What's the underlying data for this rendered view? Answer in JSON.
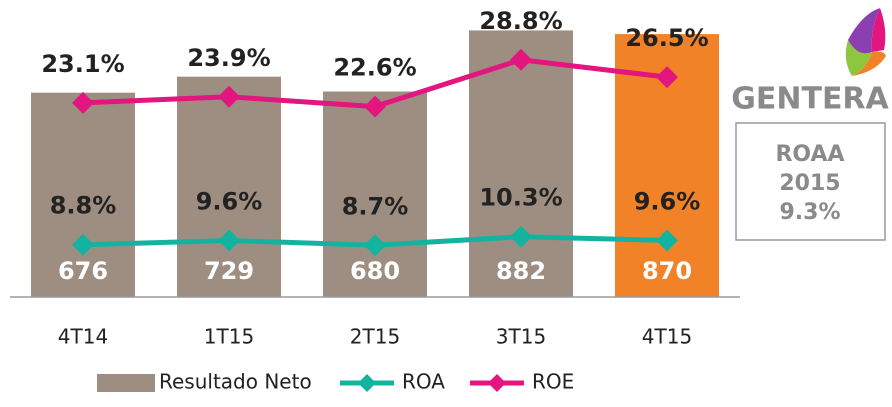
{
  "chart_data": {
    "type": "bar",
    "categories": [
      "4T14",
      "1T15",
      "2T15",
      "3T15",
      "4T15"
    ],
    "ylim": [
      0,
      900
    ],
    "y2lim": [
      -2.6,
      33.4
    ],
    "y3lim": [
      -1,
      50
    ],
    "series": [
      {
        "name": "Resultado Neto",
        "type": "bar",
        "colors": [
          "#9e8e81",
          "#9e8e81",
          "#9e8e81",
          "#9e8e81",
          "#f28228"
        ],
        "color": "#9e8e81",
        "values": [
          676,
          729,
          680,
          882,
          870
        ]
      },
      {
        "name": "ROA",
        "type": "line",
        "axis": "y3",
        "color": "#14b3a0",
        "values": [
          8.8,
          9.6,
          8.7,
          10.3,
          9.6
        ],
        "value_labels": [
          "8.8%",
          "9.6%",
          "8.7%",
          "10.3%",
          "9.6%"
        ]
      },
      {
        "name": "ROE",
        "type": "line",
        "axis": "y2",
        "color": "#e3157f",
        "values": [
          23.1,
          23.9,
          22.6,
          28.8,
          26.5
        ],
        "value_labels": [
          "23.1%",
          "23.9%",
          "22.6%",
          "28.8%",
          "26.5%"
        ]
      }
    ],
    "logo": "GENTERA",
    "callout": [
      "ROAA",
      "2015",
      "9.3%"
    ]
  }
}
